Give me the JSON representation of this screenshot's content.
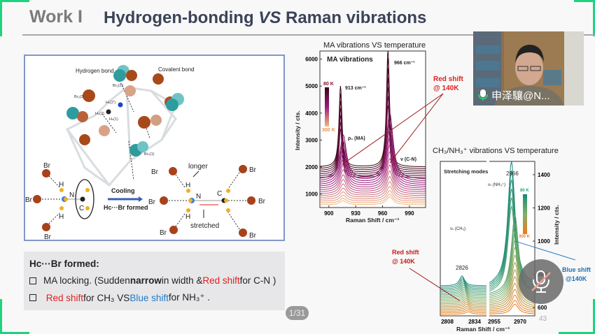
{
  "slide": {
    "section_label": "Work I",
    "title_part1": "Hydrogen-bonding ",
    "title_vs": "VS",
    "title_part2": " Raman vibrations",
    "page_counter": "1/31",
    "slide_number": "43",
    "accent_color": "#1fd37e"
  },
  "diagram": {
    "hydrogen_bond": "Hydrogen bond",
    "covalent_bond": "Covalent bond",
    "br2_2p": "Br₂(2')",
    "br2_2": "Br₂(2)",
    "hc_2p": "Hₙ(2')",
    "hc_2": "Hₙ(2)",
    "hc_1": "Hₙ(1)",
    "br4_1": "Br₄(1)",
    "br": "Br",
    "h": "H",
    "n": "N",
    "c": "C",
    "cooling": "Cooling",
    "hc_br_formed": "Hᴄ···Br formed",
    "longer": "longer",
    "stretched": "stretched"
  },
  "textbox": {
    "heading": "Hᴄ···Br formed:",
    "item1_a": "MA locking. (Sudden ",
    "item1_bold": "narrow",
    "item1_b": " in width & ",
    "item1_red": "Red shift",
    "item1_c": " for C-N )",
    "item2_red": "Red shift",
    "item2_a": " for CH₃ VS ",
    "item2_blue": "Blue shift",
    "item2_b": " for NH₃⁺ ."
  },
  "webcam": {
    "participant_name": "申泽驤@N...",
    "mic_icon": "microphone-on-icon"
  },
  "overlay": {
    "mic_icon": "microphone-muted-icon"
  },
  "chart_data": [
    {
      "type": "line",
      "title": "MA vibrations VS temperature",
      "panel_label": "MA vibrations",
      "xlabel": "Raman Shift / cm⁻¹",
      "ylabel": "Intensity / cts.",
      "xlim": [
        890,
        1008
      ],
      "ylim": [
        500,
        6300
      ],
      "xticks": [
        900,
        930,
        960,
        990
      ],
      "yticks": [
        1000,
        2000,
        3000,
        4000,
        5000,
        6000
      ],
      "peaks": [
        {
          "x": 913,
          "label": "913 cm⁻¹",
          "mode": "ρ₁ (MA)",
          "top_curve_y": 4850
        },
        {
          "x": 966,
          "label": "966 cm⁻¹",
          "mode": "ν (C-N)",
          "top_curve_y": 6100
        }
      ],
      "temperature_legend": {
        "high": "300 K",
        "low": "80 K",
        "colors": [
          "#3a0612",
          "#9c1d7e",
          "#f4b77c"
        ]
      },
      "curves": {
        "count": 22,
        "baseline_low_T": 2000,
        "baseline_high_T": 600
      },
      "annotation": {
        "line1": "Red shift",
        "line2": "@ 140K",
        "color": "#e02020"
      },
      "grid": false
    },
    {
      "type": "line",
      "title": "CH₃/NH₃⁺ vibrations VS temperature",
      "panel_label": "Stretching modes",
      "xlabel": "Raman Shift / cm⁻¹",
      "ylabel": "Intensity / cts.",
      "xticks": [
        "2808",
        "2834",
        "2955",
        "2970"
      ],
      "ylim": [
        550,
        1480
      ],
      "yticks": [
        600,
        800,
        1000,
        1200,
        1400
      ],
      "axis_break": true,
      "peaks": [
        {
          "x": 2826,
          "label": "2826",
          "mode": "νₛ (CH₃)"
        },
        {
          "x": 2966,
          "label": "2966",
          "mode": "νₛ (NH₃⁺)",
          "top_curve_y": 1450
        }
      ],
      "temperature_legend": {
        "high": "300 K",
        "low": "80 K",
        "colors": [
          "#168a78",
          "#7fb06a",
          "#f07a18"
        ]
      },
      "curves": {
        "count": 20,
        "baseline_low_T": 760,
        "baseline_high_T": 590
      },
      "annotation_red": {
        "line1": "Red shift",
        "line2": "@ 140K",
        "color": "#c81818"
      },
      "annotation_blue": {
        "line1": "Blue shift",
        "line2": "@140K",
        "color": "#1f6fb0"
      },
      "grid": false
    }
  ]
}
